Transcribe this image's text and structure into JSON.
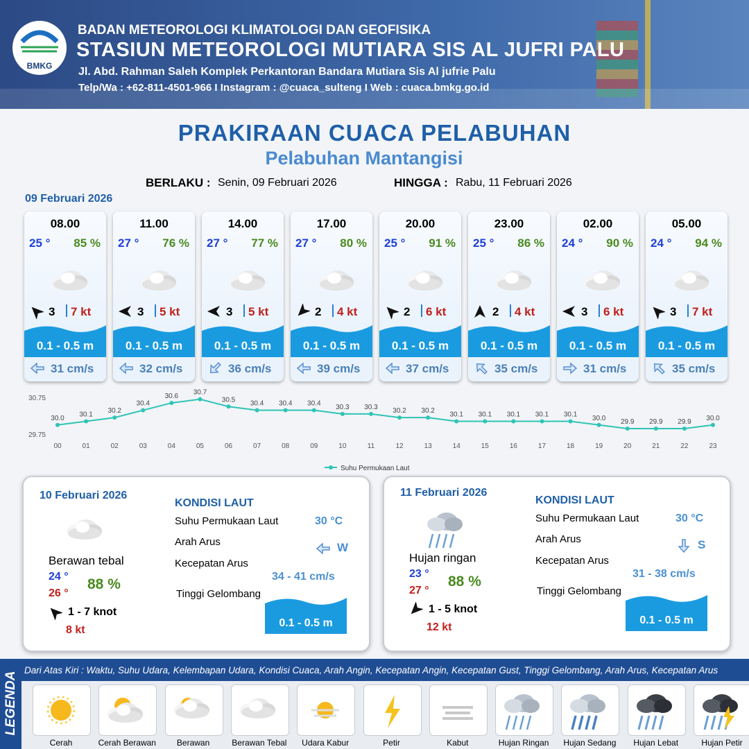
{
  "header": {
    "logo": "BMKG",
    "agency": "BADAN METEOROLOGI KLIMATOLOGI DAN GEOFISIKA",
    "station": "STASIUN METEOROLOGI MUTIARA SIS AL JUFRI PALU",
    "address": "Jl. Abd. Rahman Saleh Komplek Perkantoran Bandara Mutiara Sis Al jufrie Palu",
    "contact": "Telp/Wa : +62-811-4501-966 I Instagram : @cuaca_sulteng I Web : cuaca.bmkg.go.id"
  },
  "title": "PRAKIRAAN CUACA PELABUHAN",
  "subtitle": "Pelabuhan Mantangisi",
  "validity": {
    "from_label": "BERLAKU :",
    "from": "Senin, 09 Februari 2026",
    "to_label": "HINGGA :",
    "to": "Rabu, 11 Februari 2026"
  },
  "day1": {
    "date": "09 Februari 2026",
    "slots": [
      {
        "time": "08.00",
        "temp": "25 °",
        "humidity": "85 %",
        "wind": "3",
        "gust": "7 kt",
        "wave": "0.1 - 0.5 m",
        "current": "31 cm/s"
      },
      {
        "time": "11.00",
        "temp": "27 °",
        "humidity": "76 %",
        "wind": "3",
        "gust": "5 kt",
        "wave": "0.1 - 0.5 m",
        "current": "32 cm/s"
      },
      {
        "time": "14.00",
        "temp": "27 °",
        "humidity": "77 %",
        "wind": "3",
        "gust": "5 kt",
        "wave": "0.1 - 0.5 m",
        "current": "36 cm/s"
      },
      {
        "time": "17.00",
        "temp": "27 °",
        "humidity": "80 %",
        "wind": "2",
        "gust": "4 kt",
        "wave": "0.1 - 0.5 m",
        "current": "39 cm/s"
      },
      {
        "time": "20.00",
        "temp": "25 °",
        "humidity": "91 %",
        "wind": "2",
        "gust": "6 kt",
        "wave": "0.1 - 0.5 m",
        "current": "37 cm/s"
      },
      {
        "time": "23.00",
        "temp": "25 °",
        "humidity": "86 %",
        "wind": "2",
        "gust": "4 kt",
        "wave": "0.1 - 0.5 m",
        "current": "35 cm/s"
      },
      {
        "time": "02.00",
        "temp": "24 °",
        "humidity": "90 %",
        "wind": "3",
        "gust": "6 kt",
        "wave": "0.1 - 0.5 m",
        "current": "31 cm/s"
      },
      {
        "time": "05.00",
        "temp": "24 °",
        "humidity": "94 %",
        "wind": "3",
        "gust": "7 kt",
        "wave": "0.1 - 0.5 m",
        "current": "35 cm/s"
      }
    ]
  },
  "chart_data": {
    "type": "line",
    "categories": [
      "00",
      "01",
      "02",
      "03",
      "04",
      "05",
      "06",
      "07",
      "08",
      "09",
      "10",
      "11",
      "12",
      "13",
      "14",
      "15",
      "16",
      "17",
      "18",
      "19",
      "20",
      "21",
      "22",
      "23"
    ],
    "series": [
      {
        "name": "Suhu Permukaan Laut",
        "color": "#2ec4b6",
        "values": [
          30.0,
          30.1,
          30.2,
          30.4,
          30.6,
          30.7,
          30.5,
          30.4,
          30.4,
          30.4,
          30.3,
          30.3,
          30.2,
          30.2,
          30.1,
          30.1,
          30.1,
          30.1,
          30.1,
          30.0,
          29.9,
          29.9,
          29.9,
          30.0
        ],
        "value_labels": [
          "30.0",
          "30.1",
          "30.2",
          "30.4",
          "30.6",
          "30.7",
          "30.5",
          "30.4",
          "30.4",
          "30.4",
          "30.3",
          "30.3",
          "30.2",
          "30.2",
          "30.1",
          "30.1",
          "30.1",
          "30.1",
          "30.1",
          "30.0",
          "29.9",
          "29.9",
          "29.9",
          "30.0"
        ]
      }
    ],
    "ylim": [
      29.75,
      30.75
    ],
    "yticks": [
      29.75,
      30.75
    ],
    "legend": "bottom"
  },
  "days": [
    {
      "date": "10 Februari 2026",
      "weather": "Berawan tebal",
      "temp_min": "24 °",
      "temp_max": "26 °",
      "humidity": "88 %",
      "wind": "1 - 7 knot",
      "gust": "8 kt",
      "sea": {
        "title": "KONDISI LAUT",
        "sst_label": "Suhu Permukaan Laut",
        "sst": "30 °C",
        "dir_label": "Arah Arus",
        "dir": "W",
        "speed_label": "Kecepatan Arus",
        "speed": "34 - 41 cm/s",
        "wave_label": "Tinggi Gelombang",
        "wave": "0.1 - 0.5 m"
      }
    },
    {
      "date": "11 Februari 2026",
      "weather": "Hujan ringan",
      "temp_min": "23 °",
      "temp_max": "27 °",
      "humidity": "88 %",
      "wind": "1 - 5 knot",
      "gust": "12 kt",
      "sea": {
        "title": "KONDISI LAUT",
        "sst_label": "Suhu Permukaan Laut",
        "sst": "30 °C",
        "dir_label": "Arah Arus",
        "dir": "S",
        "speed_label": "Kecepatan Arus",
        "speed": "31 - 38 cm/s",
        "wave_label": "Tinggi Gelombang",
        "wave": "0.1 - 0.5 m"
      }
    }
  ],
  "legend": {
    "title": "LEGENDA",
    "description": "Dari Atas Kiri : Waktu, Suhu Udara, Kelembapan Udara, Kondisi Cuaca, Arah Angin, Kecepatan Angin, Kecepatan Gust, Tinggi Gelombang, Arah Arus, Kecepatan Arus",
    "items": [
      "Cerah",
      "Cerah Berawan",
      "Berawan",
      "Berawan Tebal",
      "Udara Kabur",
      "Petir",
      "Kabut",
      "Hujan Ringan",
      "Hujan Sedang",
      "Hujan Lebat",
      "Hujan Petir"
    ]
  }
}
